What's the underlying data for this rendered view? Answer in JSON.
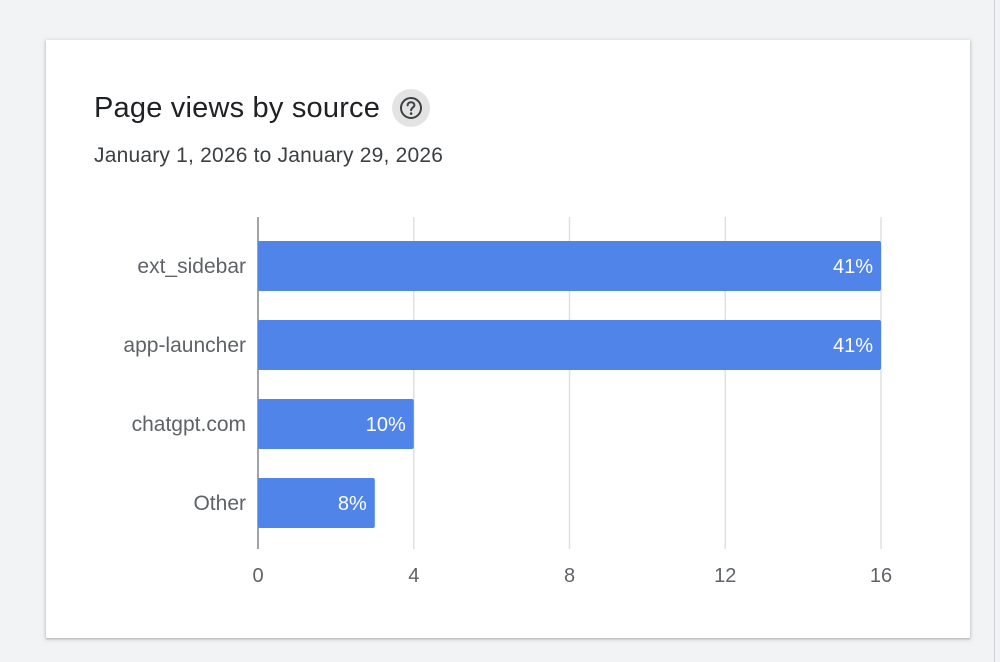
{
  "card": {
    "title": "Page views by source",
    "date_range": "January 1, 2026 to January 29, 2026",
    "help_icon": "help-circle-icon"
  },
  "chart_data": {
    "type": "bar",
    "orientation": "horizontal",
    "categories": [
      "ext_sidebar",
      "app-launcher",
      "chatgpt.com",
      "Other"
    ],
    "values": [
      16,
      16,
      4,
      3
    ],
    "labels": [
      "41%",
      "41%",
      "10%",
      "8%"
    ],
    "xticks": [
      0,
      4,
      8,
      12,
      16
    ],
    "xlim": [
      0,
      16
    ],
    "grid": true,
    "bar_color": "#5084e8",
    "grid_color": "#e0e0e0",
    "axis_color": "#80868b"
  }
}
